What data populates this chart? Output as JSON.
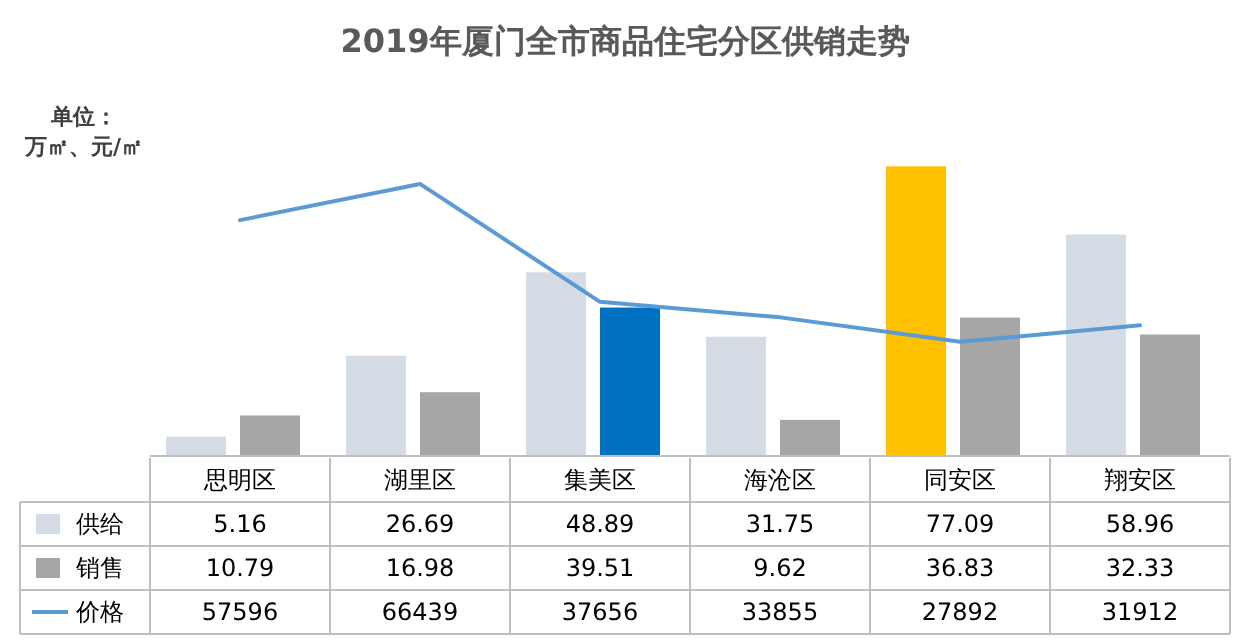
{
  "chart_data": {
    "type": "bar",
    "title": "2019年厦门全市商品住宅分区供销走势",
    "categories": [
      "思明区",
      "湖里区",
      "集美区",
      "海沧区",
      "同安区",
      "翔安区"
    ],
    "series": [
      {
        "name": "供给",
        "color": "#d6dce5",
        "colors": [
          "#d6dce5",
          "#d6dce5",
          "#d6dce5",
          "#d6dce5",
          "#ffc000",
          "#d6dce5"
        ],
        "values": [
          5.16,
          26.69,
          48.89,
          31.75,
          77.09,
          58.96
        ]
      },
      {
        "name": "销售",
        "color": "#a6a6a6",
        "colors": [
          "#a6a6a6",
          "#a6a6a6",
          "#0070c0",
          "#a6a6a6",
          "#a6a6a6",
          "#a6a6a6"
        ],
        "values": [
          10.79,
          16.98,
          39.51,
          9.62,
          36.83,
          32.33
        ]
      },
      {
        "name": "价格",
        "type": "line",
        "axis": "y2",
        "color": "#5b9bd5",
        "values": [
          57596,
          66439,
          37656,
          33855,
          27892,
          31912
        ]
      }
    ],
    "data_labels": true,
    "legend": "bottom",
    "annotations": [
      "单位：",
      "万㎡、元/㎡"
    ]
  }
}
